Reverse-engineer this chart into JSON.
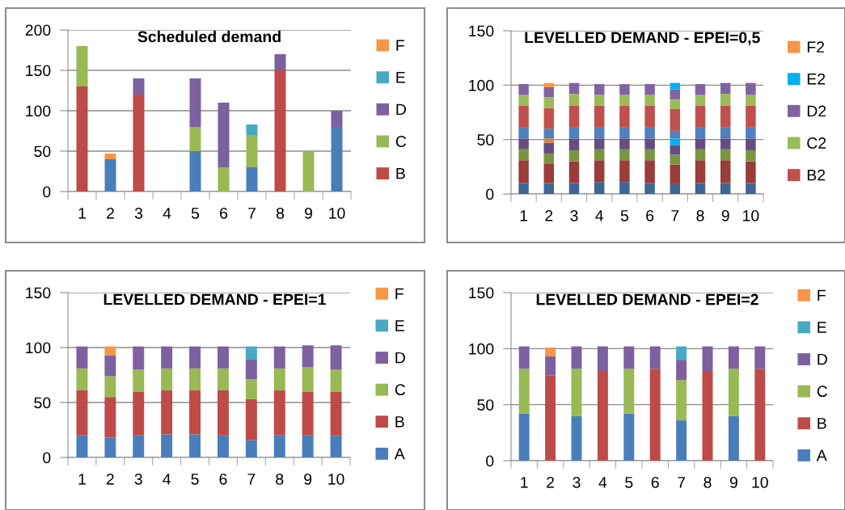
{
  "chart_data": [
    {
      "type": "bar",
      "title": "Scheduled demand",
      "stacked": true,
      "legend": "right",
      "grid": "y",
      "categories": [
        "1",
        "2",
        "3",
        "4",
        "5",
        "6",
        "7",
        "8",
        "9",
        "10"
      ],
      "ylim": [
        0,
        200
      ],
      "yticks": [
        0,
        50,
        100,
        150,
        200
      ],
      "series": [
        {
          "color": "#4a7ebb",
          "values": [
            null,
            40,
            null,
            null,
            50,
            null,
            30,
            null,
            null,
            80
          ]
        },
        {
          "name": "B",
          "color": "#be4b48",
          "values": [
            130,
            null,
            120,
            null,
            null,
            null,
            null,
            150,
            null,
            null
          ]
        },
        {
          "name": "C",
          "color": "#98b954",
          "values": [
            50,
            null,
            null,
            null,
            30,
            30,
            40,
            null,
            50,
            null
          ]
        },
        {
          "name": "D",
          "color": "#7d60a0",
          "values": [
            null,
            null,
            20,
            null,
            60,
            80,
            null,
            20,
            null,
            20
          ]
        },
        {
          "name": "E",
          "color": "#46aac5",
          "values": [
            null,
            null,
            null,
            null,
            null,
            null,
            13,
            null,
            null,
            null
          ]
        },
        {
          "name": "F",
          "color": "#f79646",
          "values": [
            null,
            7,
            null,
            null,
            null,
            null,
            null,
            null,
            null,
            null
          ]
        }
      ]
    },
    {
      "type": "bar",
      "title": "LEVELLED DEMAND - EPEI=0,5",
      "stacked": true,
      "legend": "right",
      "grid": "y",
      "categories": [
        "1",
        "2",
        "3",
        "4",
        "5",
        "6",
        "7",
        "8",
        "9",
        "10"
      ],
      "ylim": [
        0,
        150
      ],
      "yticks": [
        0,
        50,
        100,
        150
      ],
      "series": [
        {
          "color": "#3c6695",
          "values": [
            10,
            10,
            10,
            11,
            11,
            10,
            9,
            10,
            10,
            10
          ]
        },
        {
          "color": "#9a3c3a",
          "values": [
            21,
            18,
            20,
            20,
            20,
            21,
            18,
            21,
            21,
            20
          ]
        },
        {
          "color": "#7a9540",
          "values": [
            10,
            9,
            10,
            10,
            10,
            10,
            9,
            10,
            10,
            10
          ]
        },
        {
          "color": "#654d82",
          "values": [
            10,
            10,
            11,
            10,
            10,
            10,
            9,
            10,
            10,
            11
          ]
        },
        {
          "color": "#00b0f0",
          "values": [
            null,
            null,
            null,
            null,
            null,
            null,
            6,
            null,
            null,
            null
          ]
        },
        {
          "color": "#dd7e35",
          "values": [
            null,
            4,
            null,
            null,
            null,
            null,
            null,
            null,
            null,
            null
          ]
        },
        {
          "color": "#4f81bd",
          "values": [
            10,
            9,
            10,
            10,
            10,
            10,
            7,
            10,
            10,
            10
          ]
        },
        {
          "name": "B2",
          "color": "#c0504d",
          "values": [
            20,
            19,
            20,
            20,
            20,
            20,
            20,
            20,
            20,
            20
          ]
        },
        {
          "name": "C2",
          "color": "#9bbb59",
          "values": [
            10,
            10,
            11,
            10,
            10,
            10,
            9,
            10,
            11,
            10
          ]
        },
        {
          "name": "D2",
          "color": "#8064a2",
          "values": [
            10,
            9,
            10,
            10,
            10,
            10,
            9,
            10,
            10,
            11
          ]
        },
        {
          "name": "E2",
          "color": "#00b0f0",
          "values": [
            null,
            null,
            null,
            null,
            null,
            null,
            6,
            null,
            null,
            null
          ]
        },
        {
          "name": "F2",
          "color": "#f79646",
          "values": [
            null,
            4,
            null,
            null,
            null,
            null,
            null,
            null,
            null,
            null
          ]
        }
      ]
    },
    {
      "type": "bar",
      "title": "LEVELLED DEMAND - EPEI=1",
      "stacked": true,
      "legend": "right",
      "grid": "y",
      "categories": [
        "1",
        "2",
        "3",
        "4",
        "5",
        "6",
        "7",
        "8",
        "9",
        "10"
      ],
      "ylim": [
        0,
        150
      ],
      "yticks": [
        0,
        50,
        100,
        150
      ],
      "series": [
        {
          "name": "A",
          "color": "#4a7ebb",
          "values": [
            20,
            18,
            20,
            21,
            21,
            20,
            16,
            20,
            20,
            20
          ]
        },
        {
          "name": "B",
          "color": "#be4b48",
          "values": [
            41,
            37,
            40,
            40,
            40,
            41,
            37,
            41,
            40,
            40
          ]
        },
        {
          "name": "C",
          "color": "#98b954",
          "values": [
            20,
            19,
            20,
            20,
            20,
            20,
            18,
            20,
            22,
            20
          ]
        },
        {
          "name": "D",
          "color": "#7d60a0",
          "values": [
            20,
            19,
            21,
            20,
            20,
            20,
            18,
            20,
            20,
            22
          ]
        },
        {
          "name": "E",
          "color": "#46aac5",
          "values": [
            null,
            null,
            null,
            null,
            null,
            null,
            12,
            null,
            null,
            null
          ]
        },
        {
          "name": "F",
          "color": "#f79646",
          "values": [
            null,
            8,
            null,
            null,
            null,
            null,
            null,
            null,
            null,
            null
          ]
        }
      ]
    },
    {
      "type": "bar",
      "title": "LEVELLED DEMAND - EPEI=2",
      "stacked": true,
      "legend": "right",
      "grid": "y",
      "categories": [
        "1",
        "2",
        "3",
        "4",
        "5",
        "6",
        "7",
        "8",
        "9",
        "10"
      ],
      "ylim": [
        0,
        150
      ],
      "yticks": [
        0,
        50,
        100,
        150
      ],
      "series": [
        {
          "name": "A",
          "color": "#4a7ebb",
          "values": [
            42,
            null,
            40,
            null,
            42,
            null,
            36,
            null,
            40,
            null
          ]
        },
        {
          "name": "B",
          "color": "#be4b48",
          "values": [
            null,
            76,
            null,
            80,
            null,
            82,
            null,
            80,
            null,
            82
          ]
        },
        {
          "name": "C",
          "color": "#98b954",
          "values": [
            40,
            null,
            42,
            null,
            40,
            null,
            36,
            null,
            42,
            null
          ]
        },
        {
          "name": "D",
          "color": "#7d60a0",
          "values": [
            20,
            17,
            20,
            22,
            20,
            20,
            18,
            22,
            20,
            20
          ]
        },
        {
          "name": "E",
          "color": "#46aac5",
          "values": [
            null,
            null,
            null,
            null,
            null,
            null,
            12,
            null,
            null,
            null
          ]
        },
        {
          "name": "F",
          "color": "#f79646",
          "values": [
            null,
            8,
            null,
            null,
            null,
            null,
            null,
            null,
            null,
            null
          ]
        }
      ]
    }
  ]
}
